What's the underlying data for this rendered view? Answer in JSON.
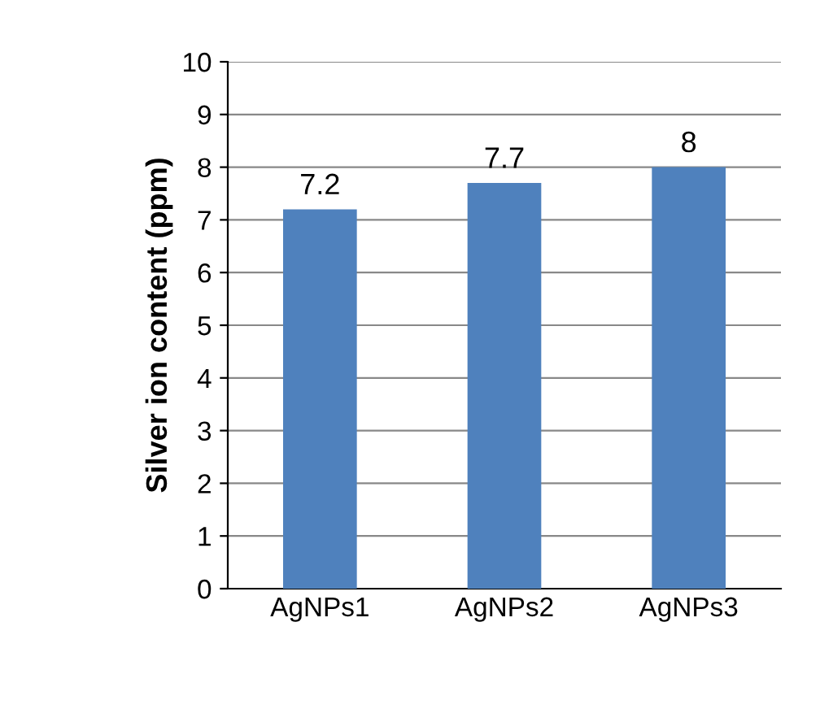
{
  "chart_data": {
    "type": "bar",
    "ylabel": "Silver ion content (ppm)",
    "categories": [
      "AgNPs1",
      "AgNPs2",
      "AgNPs3"
    ],
    "values": [
      7.2,
      7.7,
      8
    ],
    "color": "#4f81bd",
    "ylim": [
      0,
      10
    ],
    "yticks": [
      0,
      1,
      2,
      3,
      4,
      5,
      6,
      7,
      8,
      9,
      10
    ],
    "grid": "y",
    "data_labels": true
  }
}
